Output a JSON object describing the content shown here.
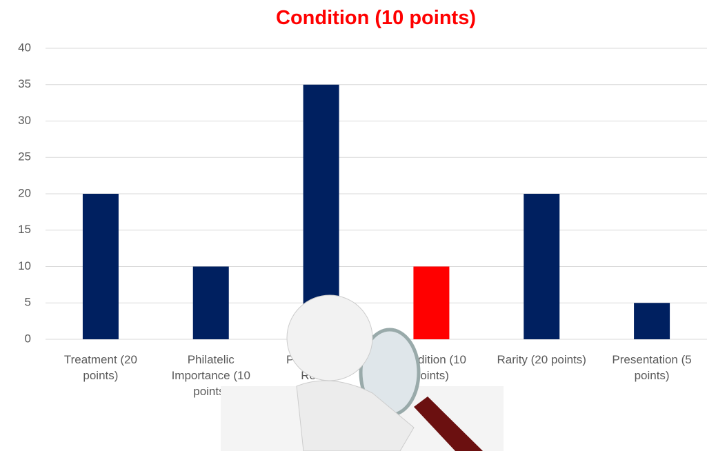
{
  "chart_data": {
    "type": "bar",
    "title": "Condition (10 points)",
    "categories": [
      "Treatment (20 points)",
      "Philatelic Importance (10 points)",
      "Philatelic and Related Knowledge, Personal Study and Research (35 points)",
      "Condition (10 points)",
      "Rarity (20 points)",
      "Presentation (5 points)"
    ],
    "values": [
      20,
      10,
      35,
      10,
      20,
      5
    ],
    "colors": [
      "#002060",
      "#002060",
      "#002060",
      "#ff0000",
      "#002060",
      "#002060"
    ],
    "ylim": [
      0,
      40
    ],
    "yticks": [
      0,
      5,
      10,
      15,
      20,
      25,
      30,
      35,
      40
    ],
    "grid": true
  }
}
